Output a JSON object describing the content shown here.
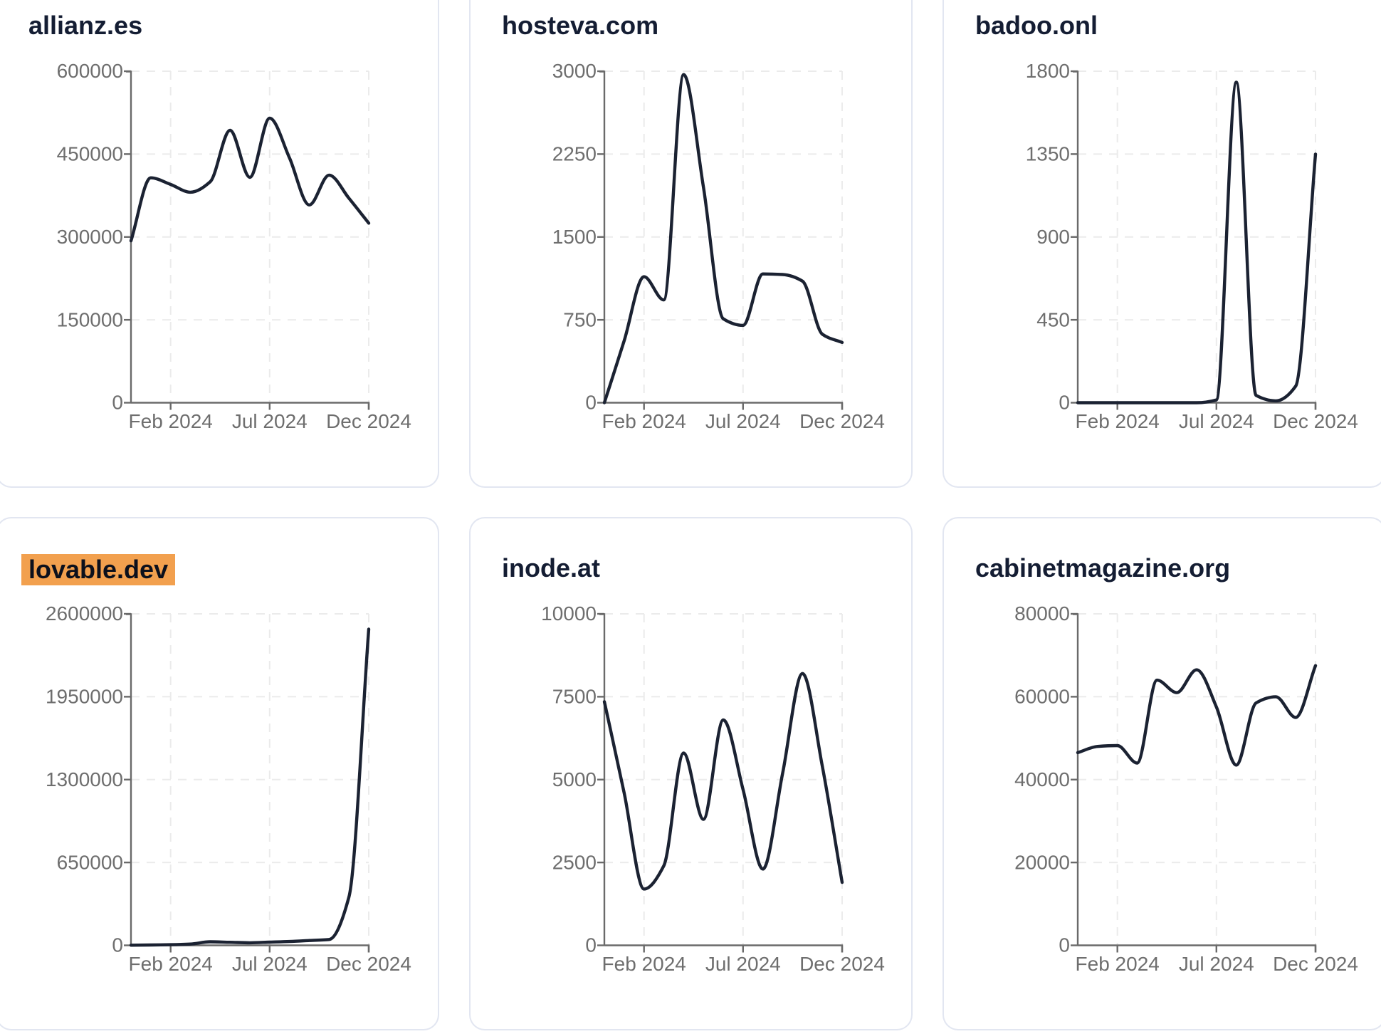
{
  "theme": {
    "page_bg": "#ffffff",
    "card_bg": "#ffffff",
    "card_border": "#e2e6f1",
    "title_color": "#141d33",
    "line_color": "#1b2232",
    "axis_color": "#6a6a6a",
    "axis_label_color": "#6e6e6e",
    "grid_color": "#ebebeb",
    "highlight_bg": "#f2a04e",
    "highlight_text": "#0c101c"
  },
  "chart_data": [
    {
      "type": "line",
      "title": "allianz.es",
      "title_highlighted": false,
      "x_tick_labels": [
        "Feb 2024",
        "Jul 2024",
        "Dec 2024"
      ],
      "x_tick_month_indices": [
        2,
        7,
        12
      ],
      "months": [
        "Dec 2023",
        "Jan 2024",
        "Feb 2024",
        "Mar 2024",
        "Apr 2024",
        "May 2024",
        "Jun 2024",
        "Jul 2024",
        "Aug 2024",
        "Sep 2024",
        "Oct 2024",
        "Nov 2024",
        "Dec 2024"
      ],
      "values": [
        293000,
        407000,
        395000,
        381000,
        400000,
        493000,
        408000,
        515000,
        443000,
        358000,
        412000,
        370000,
        325000
      ],
      "yticks": [
        0,
        150000,
        300000,
        450000,
        600000
      ],
      "ylim": [
        0,
        600000
      ],
      "grid": true,
      "legend": false
    },
    {
      "type": "line",
      "title": "hosteva.com",
      "title_highlighted": false,
      "x_tick_labels": [
        "Feb 2024",
        "Jul 2024",
        "Dec 2024"
      ],
      "x_tick_month_indices": [
        2,
        7,
        12
      ],
      "months": [
        "Dec 2023",
        "Jan 2024",
        "Feb 2024",
        "Mar 2024",
        "Apr 2024",
        "May 2024",
        "Jun 2024",
        "Jul 2024",
        "Aug 2024",
        "Sep 2024",
        "Oct 2024",
        "Nov 2024",
        "Dec 2024"
      ],
      "values": [
        0,
        560,
        1140,
        930,
        2970,
        1950,
        760,
        700,
        1165,
        1160,
        1100,
        620,
        545
      ],
      "yticks": [
        0,
        750,
        1500,
        2250,
        3000
      ],
      "ylim": [
        0,
        3000
      ],
      "grid": true,
      "legend": false
    },
    {
      "type": "line",
      "title": "badoo.onl",
      "title_highlighted": false,
      "x_tick_labels": [
        "Feb 2024",
        "Jul 2024",
        "Dec 2024"
      ],
      "x_tick_month_indices": [
        2,
        7,
        12
      ],
      "months": [
        "Dec 2023",
        "Jan 2024",
        "Feb 2024",
        "Mar 2024",
        "Apr 2024",
        "May 2024",
        "Jun 2024",
        "Jul 2024",
        "Aug 2024",
        "Sep 2024",
        "Oct 2024",
        "Nov 2024",
        "Dec 2024"
      ],
      "values": [
        0,
        0,
        0,
        0,
        0,
        0,
        0,
        15,
        1740,
        40,
        10,
        90,
        1350
      ],
      "yticks": [
        0,
        450,
        900,
        1350,
        1800
      ],
      "ylim": [
        0,
        1800
      ],
      "grid": true,
      "legend": false
    },
    {
      "type": "line",
      "title": "lovable.dev",
      "title_highlighted": true,
      "x_tick_labels": [
        "Feb 2024",
        "Jul 2024",
        "Dec 2024"
      ],
      "x_tick_month_indices": [
        2,
        7,
        12
      ],
      "months": [
        "Dec 2023",
        "Jan 2024",
        "Feb 2024",
        "Mar 2024",
        "Apr 2024",
        "May 2024",
        "Jun 2024",
        "Jul 2024",
        "Aug 2024",
        "Sep 2024",
        "Oct 2024",
        "Nov 2024",
        "Dec 2024"
      ],
      "values": [
        1000,
        3000,
        5000,
        10000,
        28000,
        24000,
        20000,
        25000,
        30000,
        38000,
        46000,
        380000,
        2480000
      ],
      "yticks": [
        0,
        650000,
        1300000,
        1950000,
        2600000
      ],
      "ylim": [
        0,
        2600000
      ],
      "grid": true,
      "legend": false
    },
    {
      "type": "line",
      "title": "inode.at",
      "title_highlighted": false,
      "x_tick_labels": [
        "Feb 2024",
        "Jul 2024",
        "Dec 2024"
      ],
      "x_tick_month_indices": [
        2,
        7,
        12
      ],
      "months": [
        "Dec 2023",
        "Jan 2024",
        "Feb 2024",
        "Mar 2024",
        "Apr 2024",
        "May 2024",
        "Jun 2024",
        "Jul 2024",
        "Aug 2024",
        "Sep 2024",
        "Oct 2024",
        "Nov 2024",
        "Dec 2024"
      ],
      "values": [
        7350,
        4600,
        1700,
        2400,
        5800,
        3800,
        6800,
        4700,
        2300,
        5200,
        8200,
        5400,
        1900
      ],
      "yticks": [
        0,
        2500,
        5000,
        7500,
        10000
      ],
      "ylim": [
        0,
        10000
      ],
      "grid": true,
      "legend": false
    },
    {
      "type": "line",
      "title": "cabinetmagazine.org",
      "title_highlighted": false,
      "x_tick_labels": [
        "Feb 2024",
        "Jul 2024",
        "Dec 2024"
      ],
      "x_tick_month_indices": [
        2,
        7,
        12
      ],
      "months": [
        "Dec 2023",
        "Jan 2024",
        "Feb 2024",
        "Mar 2024",
        "Apr 2024",
        "May 2024",
        "Jun 2024",
        "Jul 2024",
        "Aug 2024",
        "Sep 2024",
        "Oct 2024",
        "Nov 2024",
        "Dec 2024"
      ],
      "values": [
        46500,
        48000,
        48200,
        44000,
        64000,
        61000,
        66500,
        57500,
        43500,
        58500,
        60000,
        55000,
        67500
      ],
      "yticks": [
        0,
        20000,
        40000,
        60000,
        80000
      ],
      "ylim": [
        0,
        80000
      ],
      "grid": true,
      "legend": false
    }
  ]
}
